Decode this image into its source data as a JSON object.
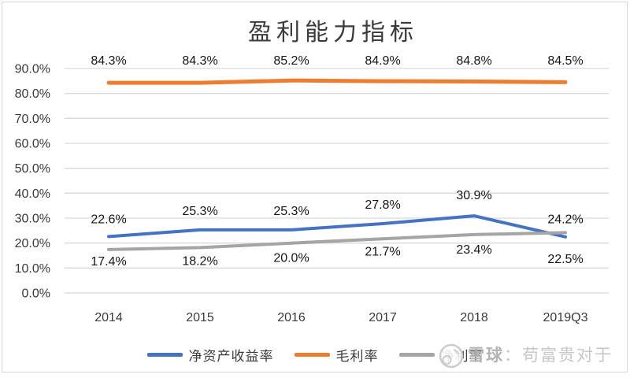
{
  "chart_data": {
    "type": "line",
    "title": "盈利能力指标",
    "categories": [
      "2014",
      "2015",
      "2016",
      "2017",
      "2018",
      "2019Q3"
    ],
    "series": [
      {
        "name": "净资产收益率",
        "color": "#4472C4",
        "values": [
          22.6,
          25.3,
          25.3,
          27.8,
          30.9,
          22.5
        ],
        "labels": [
          "22.6%",
          "25.3%",
          "25.3%",
          "27.8%",
          "30.9%",
          "22.5%"
        ]
      },
      {
        "name": "毛利率",
        "color": "#ED7D31",
        "values": [
          84.3,
          84.3,
          85.2,
          84.9,
          84.8,
          84.5
        ],
        "labels": [
          "84.3%",
          "84.3%",
          "85.2%",
          "84.9%",
          "84.8%",
          "84.5%"
        ]
      },
      {
        "name": "净利率",
        "color": "#A5A5A5",
        "values": [
          17.4,
          18.2,
          20.0,
          21.7,
          23.4,
          24.2
        ],
        "labels": [
          "17.4%",
          "18.2%",
          "20.0%",
          "21.7%",
          "23.4%",
          "24.2%"
        ]
      }
    ],
    "y_axis": {
      "min": 0,
      "max": 90,
      "step": 10,
      "tick_labels": [
        "0.0%",
        "10.0%",
        "20.0%",
        "30.0%",
        "40.0%",
        "50.0%",
        "60.0%",
        "70.0%",
        "80.0%",
        "90.0%"
      ]
    },
    "grid": true,
    "legend_position": "bottom"
  },
  "watermark": {
    "brand": "雪球",
    "suffix": "：苟富贵对于",
    "logo": "snowball-icon"
  },
  "colors": {
    "grid": "#d9d9d9",
    "axis_text": "#3a3a3a",
    "data_label_text": "#161616",
    "title_text": "#3b3b3b",
    "frame_border": "#d8d8d8",
    "watermark_text": "#c7c7c7",
    "watermark_logo": "#cccccc",
    "background": "#ffffff"
  }
}
